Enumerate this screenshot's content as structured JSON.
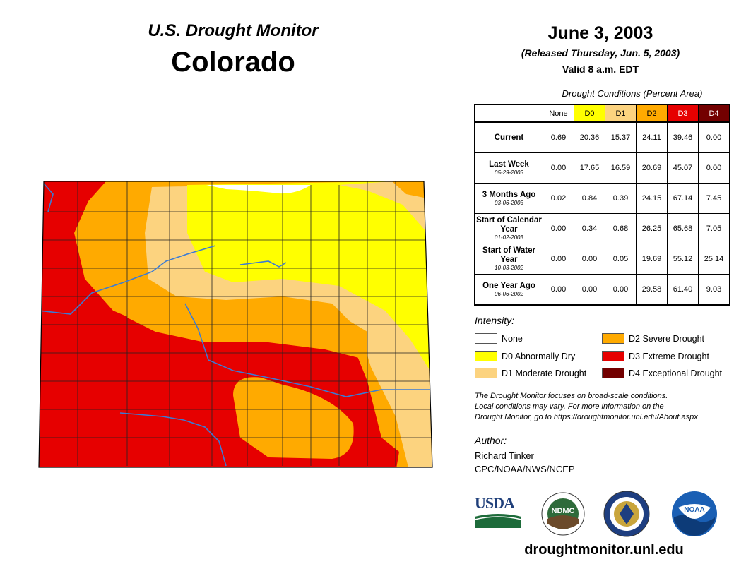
{
  "header": {
    "subtitle": "U.S. Drought Monitor",
    "state": "Colorado",
    "date": "June 3, 2003",
    "released": "(Released Thursday, Jun. 5, 2003)",
    "valid": "Valid 8 a.m. EDT"
  },
  "table": {
    "title": "Drought Conditions (Percent Area)",
    "columns": [
      "None",
      "D0",
      "D1",
      "D2",
      "D3",
      "D4"
    ],
    "column_colors": [
      "#ffffff",
      "#ffff00",
      "#fcd37f",
      "#ffaa00",
      "#e60000",
      "#730000"
    ],
    "rows": [
      {
        "label": "Current",
        "date": "",
        "values": [
          "0.69",
          "20.36",
          "15.37",
          "24.11",
          "39.46",
          "0.00"
        ]
      },
      {
        "label": "Last Week",
        "date": "05-29-2003",
        "values": [
          "0.00",
          "17.65",
          "16.59",
          "20.69",
          "45.07",
          "0.00"
        ]
      },
      {
        "label": "3 Months Ago",
        "date": "03-06-2003",
        "values": [
          "0.02",
          "0.84",
          "0.39",
          "24.15",
          "67.14",
          "7.45"
        ]
      },
      {
        "label": "Start of Calendar Year",
        "date": "01-02-2003",
        "values": [
          "0.00",
          "0.34",
          "0.68",
          "26.25",
          "65.68",
          "7.05"
        ]
      },
      {
        "label": "Start of Water Year",
        "date": "10-03-2002",
        "values": [
          "0.00",
          "0.00",
          "0.05",
          "19.69",
          "55.12",
          "25.14"
        ]
      },
      {
        "label": "One Year Ago",
        "date": "06-06-2002",
        "values": [
          "0.00",
          "0.00",
          "0.00",
          "29.58",
          "61.40",
          "9.03"
        ]
      }
    ]
  },
  "legend": {
    "title": "Intensity:",
    "items": [
      {
        "label": "None",
        "color": "#ffffff"
      },
      {
        "label": "D0 Abnormally Dry",
        "color": "#ffff00"
      },
      {
        "label": "D1 Moderate Drought",
        "color": "#fcd37f"
      },
      {
        "label": "D2 Severe Drought",
        "color": "#ffaa00"
      },
      {
        "label": "D3 Extreme Drought",
        "color": "#e60000"
      },
      {
        "label": "D4 Exceptional Drought",
        "color": "#730000"
      }
    ]
  },
  "note": {
    "line1": "The Drought Monitor focuses on broad-scale conditions.",
    "line2": "Local conditions may vary. For more information on the",
    "line3": "Drought Monitor, go to https://droughtmonitor.unl.edu/About.aspx"
  },
  "author": {
    "title": "Author:",
    "name": "Richard Tinker",
    "org": "CPC/NOAA/NWS/NCEP"
  },
  "logos": {
    "usda": "USDA",
    "ndmc": "NDMC",
    "noaa": "NOAA"
  },
  "website": "droughtmonitor.unl.edu"
}
